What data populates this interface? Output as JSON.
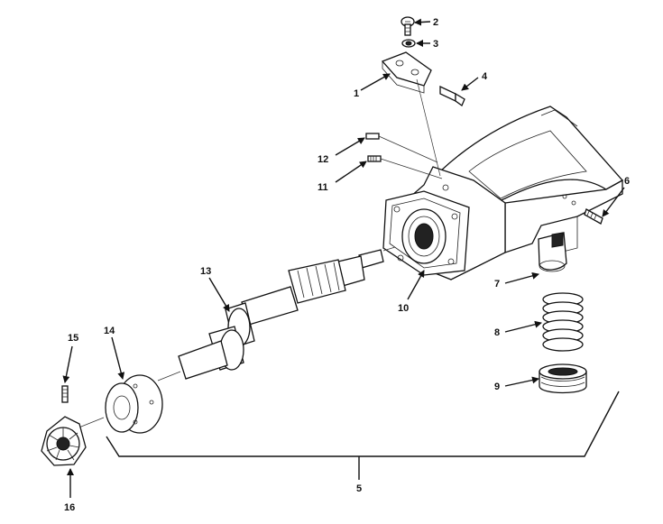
{
  "callouts": {
    "c1": "1",
    "c2": "2",
    "c3": "3",
    "c4": "4",
    "c5": "5",
    "c6": "6",
    "c7": "7",
    "c8": "8",
    "c9": "9",
    "c10": "10",
    "c11": "11",
    "c12": "12",
    "c13": "13",
    "c14": "14",
    "c15": "15",
    "c16": "16"
  },
  "colors": {
    "ink": "#111111",
    "paper": "#ffffff"
  }
}
